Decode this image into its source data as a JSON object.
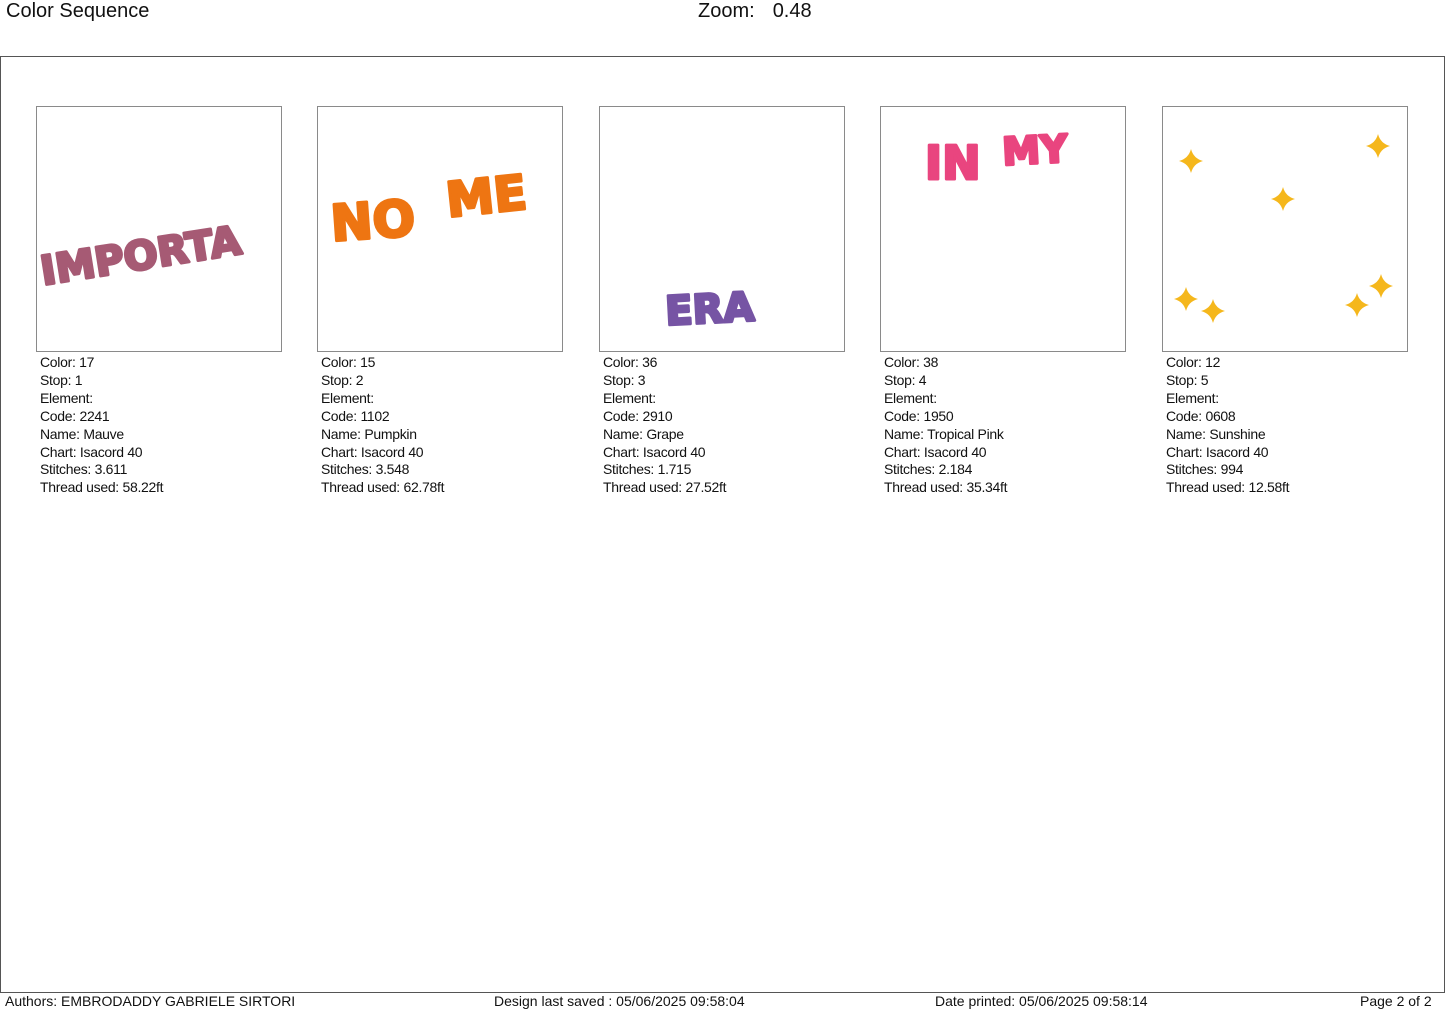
{
  "header": {
    "title": "Color Sequence",
    "zoom_label": "Zoom:",
    "zoom_value": "0.48"
  },
  "labels": {
    "color": "Color: ",
    "stop": "Stop: ",
    "element": "Element:",
    "code": "Code: ",
    "name": "Name: ",
    "chart": "Chart: ",
    "stitches": "Stitches: ",
    "thread": "Thread used: "
  },
  "stops": [
    {
      "color": "17",
      "stop": "1",
      "element": "",
      "code": "2241",
      "name": "Mauve",
      "chart": "Isacord 40",
      "stitches": "3.611",
      "thread": "58.22ft",
      "hex": "#a65a74",
      "art": "IMPORTA"
    },
    {
      "color": "15",
      "stop": "2",
      "element": "",
      "code": "1102",
      "name": "Pumpkin",
      "chart": "Isacord 40",
      "stitches": "3.548",
      "thread": "62.78ft",
      "hex": "#ee7512",
      "art": [
        "NO",
        "ME"
      ]
    },
    {
      "color": "36",
      "stop": "3",
      "element": "",
      "code": "2910",
      "name": "Grape",
      "chart": "Isacord 40",
      "stitches": "1.715",
      "thread": "27.52ft",
      "hex": "#7654a4",
      "art": "ERA"
    },
    {
      "color": "38",
      "stop": "4",
      "element": "",
      "code": "1950",
      "name": "Tropical Pink",
      "chart": "Isacord 40",
      "stitches": "2.184",
      "thread": "35.34ft",
      "hex": "#e9457f",
      "art": [
        "IN",
        "MY"
      ]
    },
    {
      "color": "12",
      "stop": "5",
      "element": "",
      "code": "0608",
      "name": "Sunshine",
      "chart": "Isacord 40",
      "stitches": "994",
      "thread": "12.58ft",
      "hex": "#f5b71c",
      "art": "star-icons"
    }
  ],
  "footer": {
    "authors": "Authors: EMBRODADDY GABRIELE SIRTORI",
    "saved": "Design last saved : 05/06/2025 09:58:04",
    "printed": "Date printed: 05/06/2025 09:58:14",
    "page": "Page 2 of 2"
  }
}
